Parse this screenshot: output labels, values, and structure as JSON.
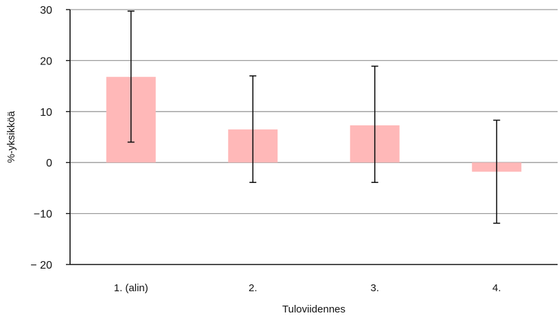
{
  "chart_data": {
    "type": "bar",
    "title": "",
    "xlabel": "Tuloviidennes",
    "ylabel": "%-yksikköä",
    "categories": [
      "1. (alin)",
      "2.",
      "3.",
      "4."
    ],
    "values": [
      16.8,
      6.5,
      7.3,
      -1.8
    ],
    "error_bars": [
      {
        "low": 4.0,
        "high": 29.7
      },
      {
        "low": -3.9,
        "high": 17.0
      },
      {
        "low": -3.9,
        "high": 18.9
      },
      {
        "low": -11.9,
        "high": 8.3
      }
    ],
    "ylim": [
      -20,
      30
    ],
    "yticks": [
      30,
      20,
      10,
      0,
      -10,
      -20
    ],
    "ytick_labels": [
      "30",
      "20",
      "10",
      "0",
      "−10",
      "− 20"
    ],
    "grid": true,
    "legend": "none",
    "colors": {
      "bar": "#ffb8b8",
      "grid": "#9a9a9a",
      "axis": "#111111",
      "error_bar": "#111111"
    }
  }
}
